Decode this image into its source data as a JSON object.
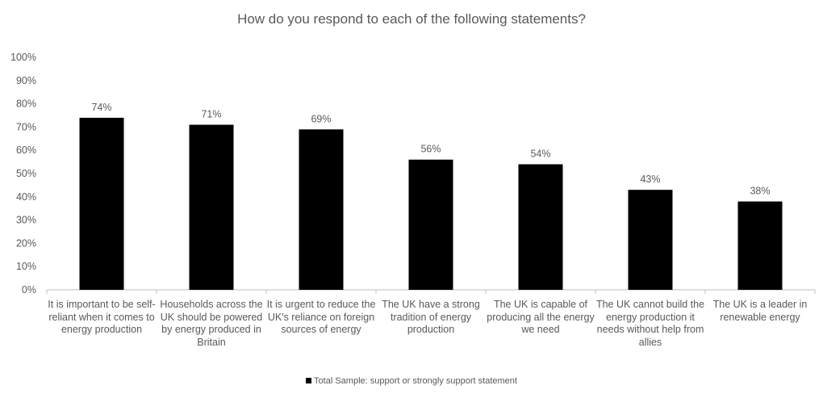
{
  "chart_data": {
    "type": "bar",
    "title": "How do you respond to each of the following statements?",
    "categories": [
      "It is important to be self-reliant when it comes to energy production",
      "Households across the UK should be powered by energy produced in Britain",
      "It is urgent to reduce the UK's reliance on foreign sources of energy",
      "The UK have a strong tradition of energy production",
      "The UK is capable of producing all the energy we need",
      "The UK cannot build the energy production it needs without help from allies",
      "The UK is a leader in renewable energy"
    ],
    "series": [
      {
        "name": "Total Sample: support or strongly support statement",
        "values": [
          74,
          71,
          69,
          56,
          54,
          43,
          38
        ],
        "labels": [
          "74%",
          "71%",
          "69%",
          "56%",
          "54%",
          "43%",
          "38%"
        ],
        "color": "#000000"
      }
    ],
    "ylim": [
      0,
      100
    ],
    "yticks": [
      "0%",
      "10%",
      "20%",
      "30%",
      "40%",
      "50%",
      "60%",
      "70%",
      "80%",
      "90%",
      "100%"
    ],
    "grid": false,
    "legend_position": "bottom"
  }
}
